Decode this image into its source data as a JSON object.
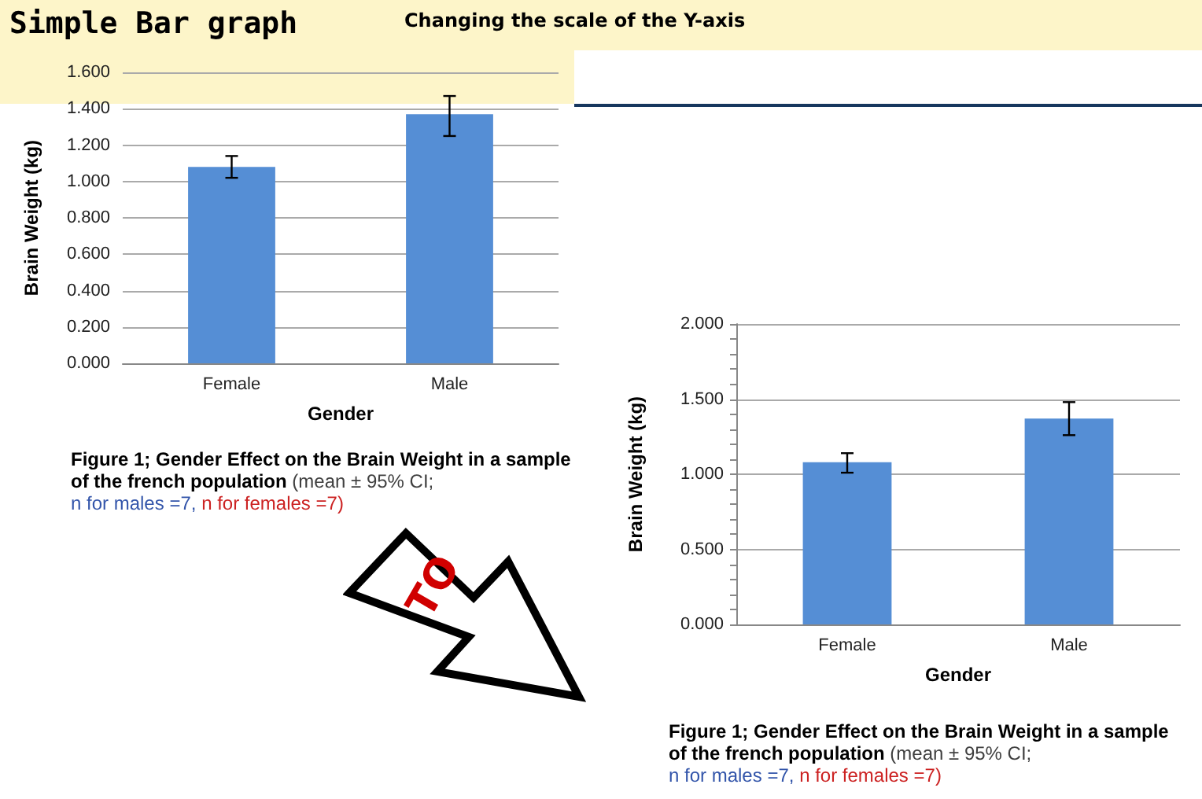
{
  "chart_data": [
    {
      "type": "bar",
      "title": "Simple Bar graph",
      "subtitle": "Changing the scale of the Y-axis",
      "xlabel": "Gender",
      "ylabel": "Brain Weight (kg)",
      "categories": [
        "Female",
        "Male"
      ],
      "values": [
        1.08,
        1.37
      ],
      "errors": [
        [
          1.02,
          1.14
        ],
        [
          1.25,
          1.47
        ]
      ],
      "color": "#558ed5",
      "ylim": [
        0,
        1.6
      ],
      "yticks": [
        {
          "value": 0,
          "label": "0.000"
        },
        {
          "value": 0.2,
          "label": "0.200"
        },
        {
          "value": 0.4,
          "label": "0.400"
        },
        {
          "value": 0.6,
          "label": "0.600"
        },
        {
          "value": 0.8,
          "label": "0.800"
        },
        {
          "value": 1,
          "label": "1.000"
        },
        {
          "value": 1.2,
          "label": "1.200"
        },
        {
          "value": 1.4,
          "label": "1.400"
        },
        {
          "value": 1.6,
          "label": "1.600"
        }
      ],
      "grid": "y",
      "annotations": [
        "Figure 1; Gender Effect on the Brain Weight in a sample of the french population",
        "(mean ± 95% CI;",
        "n for males =7,",
        "n for females =7)",
        "TO"
      ]
    },
    {
      "type": "bar",
      "xlabel": "Gender",
      "ylabel": "Brain Weight (kg)",
      "categories": [
        "Female",
        "Male"
      ],
      "values": [
        1.08,
        1.37
      ],
      "errors": [
        [
          1.01,
          1.14
        ],
        [
          1.26,
          1.48
        ]
      ],
      "color": "#558ed5",
      "ylim": [
        0,
        2
      ],
      "yticks": [
        {
          "value": 0,
          "label": "0.000"
        },
        {
          "value": 0.1,
          "label": null
        },
        {
          "value": 0.2,
          "label": null
        },
        {
          "value": 0.3,
          "label": null
        },
        {
          "value": 0.4,
          "label": null
        },
        {
          "value": 0.5,
          "label": "0.500"
        },
        {
          "value": 0.6,
          "label": null
        },
        {
          "value": 0.7,
          "label": null
        },
        {
          "value": 0.8,
          "label": null
        },
        {
          "value": 0.9,
          "label": null
        },
        {
          "value": 1,
          "label": "1.000"
        },
        {
          "value": 1.1,
          "label": null
        },
        {
          "value": 1.2,
          "label": null
        },
        {
          "value": 1.3,
          "label": null
        },
        {
          "value": 1.4,
          "label": null
        },
        {
          "value": 1.5,
          "label": "1.500"
        },
        {
          "value": 1.6,
          "label": null
        },
        {
          "value": 1.7,
          "label": null
        },
        {
          "value": 1.8,
          "label": null
        },
        {
          "value": 1.9,
          "label": null
        },
        {
          "value": 2,
          "label": "2.000"
        }
      ],
      "grid": "y",
      "annotations": [
        "Figure 1; Gender Effect on the Brain Weight in a sample of the french population",
        "(mean ± 95% CI;",
        "n for males =7,",
        "n for females =7)"
      ]
    }
  ]
}
